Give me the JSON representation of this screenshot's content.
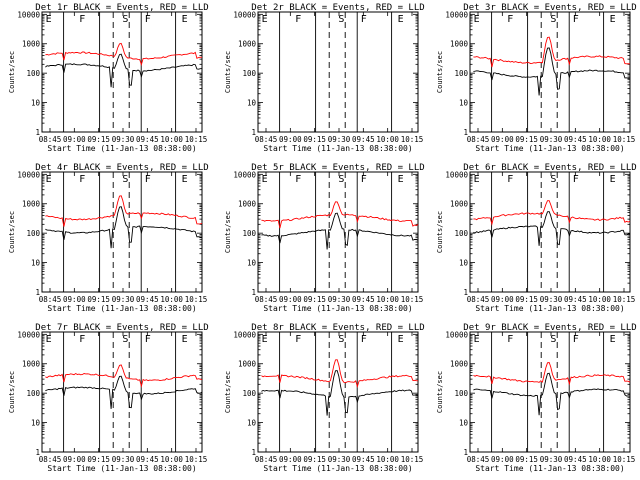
{
  "chart_data": {
    "type": "line",
    "layout": {
      "rows": 3,
      "cols": 3
    },
    "y_scale": "log",
    "ylim": [
      1,
      12000
    ],
    "y_ticks": [
      1,
      10,
      100,
      1000,
      10000
    ],
    "y_tick_labels": [
      "1",
      "10",
      "100",
      "1000",
      "10000"
    ],
    "x_tick_labels": [
      "08:45",
      "09:00",
      "09:15",
      "09:30",
      "09:45",
      "10:00",
      "10:15"
    ],
    "xlabel": "Start Time (11-Jan-13 08:38:00)",
    "ylabel": "Counts/sec",
    "series_colors": {
      "events": "#000000",
      "lld": "#ff0000"
    },
    "panels": [
      {
        "title": "Det 1r BLACK = Events, RED = LLD",
        "markers": [
          "E",
          "F",
          "S",
          "F",
          "E"
        ],
        "events_base": 180,
        "lld_base": 450,
        "flare_peak": 700
      },
      {
        "title": "Det 2r BLACK = Events, RED = LLD",
        "markers": [
          "E",
          "F",
          "S",
          "F",
          "E"
        ],
        "events_base": null,
        "lld_base": null,
        "flare_peak": null
      },
      {
        "title": "Det 3r BLACK = Events, RED = LLD",
        "markers": [
          "E",
          "F",
          "S",
          "F",
          "E"
        ],
        "events_base": 110,
        "lld_base": 330,
        "flare_peak": 1500
      },
      {
        "title": "Det 4r BLACK = Events, RED = LLD",
        "markers": [
          "E",
          "F",
          "S",
          "F",
          "E"
        ],
        "events_base": 150,
        "lld_base": 430,
        "flare_peak": 1500
      },
      {
        "title": "Det 5r BLACK = Events, RED = LLD",
        "markers": [
          "E",
          "F",
          "S",
          "F",
          "E"
        ],
        "events_base": 120,
        "lld_base": 380,
        "flare_peak": 800
      },
      {
        "title": "Det 6r BLACK = Events, RED = LLD",
        "markers": [
          "E",
          "F",
          "S",
          "F",
          "E"
        ],
        "events_base": 150,
        "lld_base": 420,
        "flare_peak": 900
      },
      {
        "title": "Det 7r BLACK = Events, RED = LLD",
        "markers": [
          "E",
          "F",
          "S",
          "F",
          "E"
        ],
        "events_base": 140,
        "lld_base": 400,
        "flare_peak": 600
      },
      {
        "title": "Det 8r BLACK = Events, RED = LLD",
        "markers": [
          "E",
          "F",
          "S",
          "F",
          "E"
        ],
        "events_base": 110,
        "lld_base": 350,
        "flare_peak": 1200
      },
      {
        "title": "Det 9r BLACK = Events, RED = LLD",
        "markers": [
          "E",
          "F",
          "S",
          "F",
          "E"
        ],
        "events_base": 120,
        "lld_base": 360,
        "flare_peak": 900
      }
    ]
  }
}
